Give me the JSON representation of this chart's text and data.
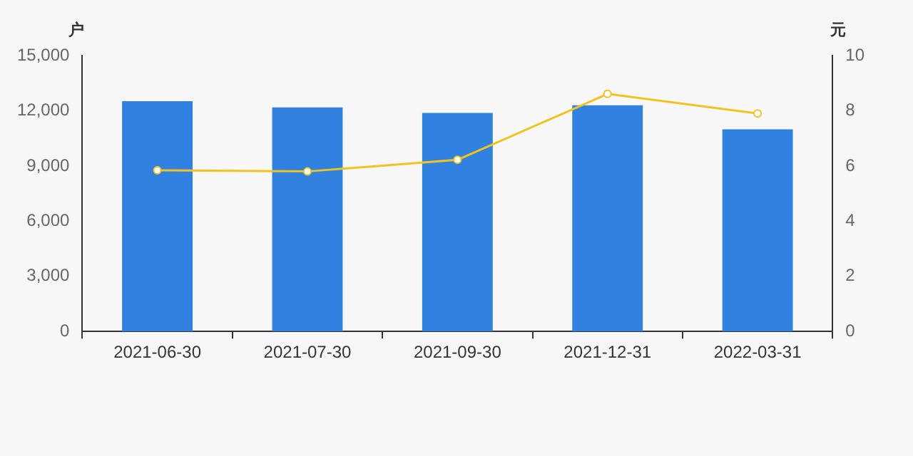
{
  "chart_data": {
    "type": "bar",
    "ylabel": "户",
    "y2label": "元",
    "categories": [
      "2021-06-30",
      "2021-07-30",
      "2021-09-30",
      "2021-12-31",
      "2022-03-31"
    ],
    "series": [
      {
        "color": "#3181e0",
        "values": [
          12520,
          12180,
          11880,
          12300,
          10990
        ]
      },
      {
        "type": "line",
        "axis": "y2",
        "color": "#f2c31e",
        "marker": "circle",
        "values": [
          5.84,
          5.8,
          6.22,
          8.61,
          7.9
        ]
      }
    ],
    "ylim": [
      0,
      15000
    ],
    "yticks": [
      0,
      {
        "value": 3000,
        "label": "3,000"
      },
      {
        "value": 6000,
        "label": "6,000"
      },
      {
        "value": 9000,
        "label": "9,000"
      },
      {
        "value": 12000,
        "label": "12,000"
      },
      {
        "value": 15000,
        "label": "15,000"
      }
    ],
    "y2lim": [
      0,
      10
    ],
    "y2ticks": [
      0,
      2,
      4,
      6,
      8,
      10
    ],
    "grid": false,
    "legend": false
  }
}
